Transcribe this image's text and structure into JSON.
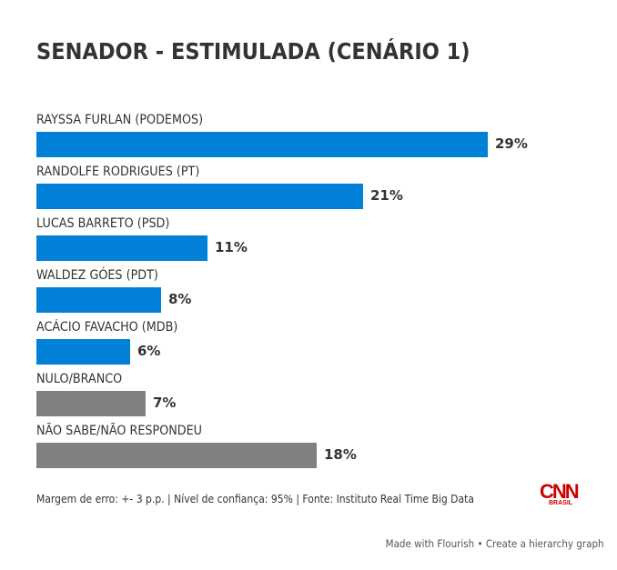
{
  "chart_data": {
    "type": "bar",
    "orientation": "horizontal",
    "title": "SENADOR - ESTIMULADA (CENÁRIO 1)",
    "xlabel": "",
    "ylabel": "",
    "xlim": [
      0,
      29
    ],
    "grid": false,
    "value_suffix": "%",
    "categories": [
      "RAYSSA FURLAN (PODEMOS)",
      "RANDOLFE RODRIGUES (PT)",
      "LUCAS BARRETO (PSD)",
      "WALDEZ GÓES (PDT)",
      "ACÁCIO FAVACHO (MDB)",
      "NULO/BRANCO",
      "NÃO SABE/NÃO RESPONDEU"
    ],
    "values": [
      29,
      21,
      11,
      8,
      6,
      7,
      18
    ],
    "value_labels": [
      "29%",
      "21%",
      "11%",
      "8%",
      "6%",
      "7%",
      "18%"
    ],
    "bar_colors": [
      "#0080d6",
      "#0080d6",
      "#0080d6",
      "#0080d6",
      "#0080d6",
      "#808080",
      "#808080"
    ]
  },
  "footer": {
    "note": "Margem de erro: +- 3 p.p. | Nível de confiança: 95% | Fonte: Instituto Real Time Big Data",
    "logo_main": "CNN",
    "logo_sub": "BRASIL",
    "credit": "Made with Flourish • Create a hierarchy graph"
  },
  "colors": {
    "candidate": "#0080d6",
    "other": "#808080",
    "text": "#333333",
    "logo": "#cc0000"
  }
}
